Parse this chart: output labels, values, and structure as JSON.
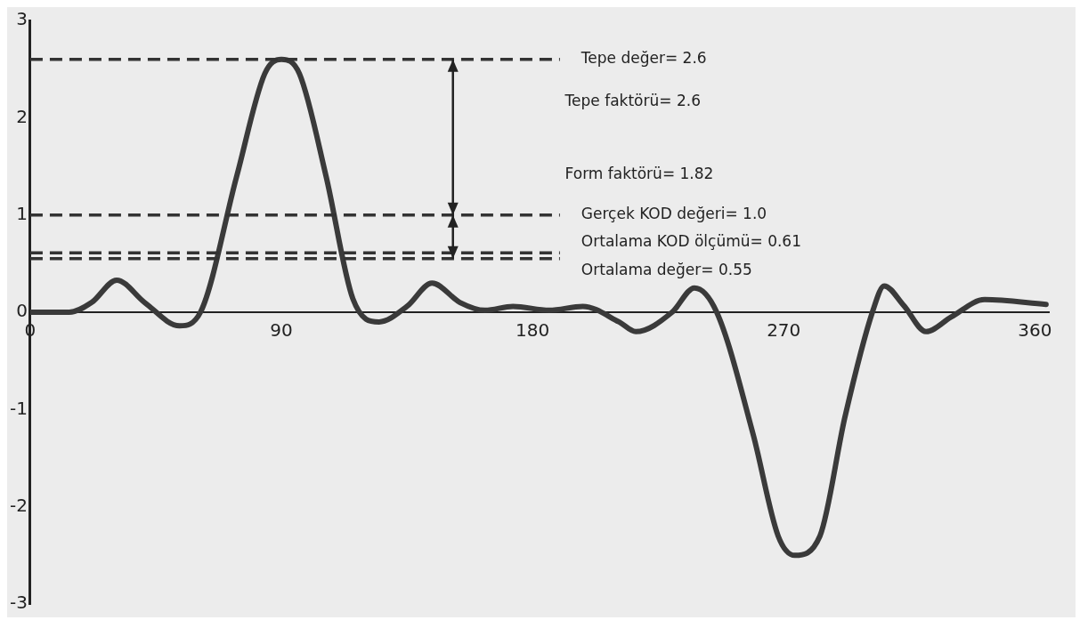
{
  "chart_data": {
    "type": "line",
    "x": [
      0,
      14,
      22,
      31,
      41,
      53.5,
      61,
      74,
      84,
      90,
      96.5,
      106,
      115.6,
      125,
      135,
      144,
      154,
      163,
      173,
      186,
      198,
      211,
      217,
      230,
      238,
      246,
      259,
      268,
      274,
      283,
      292,
      302,
      306,
      313,
      321,
      330,
      342,
      364
    ],
    "series": [
      {
        "color": "#3a3a3a",
        "values": [
          0,
          0,
          0.1,
          0.33,
          0.1,
          -0.14,
          0,
          1.4,
          2.45,
          2.6,
          2.45,
          1.4,
          0.14,
          -0.1,
          0.06,
          0.3,
          0.1,
          0.02,
          0.06,
          0.02,
          0.06,
          -0.1,
          -0.2,
          0,
          0.25,
          0,
          -1.25,
          -2.3,
          -2.5,
          -2.3,
          -1.07,
          0.02,
          0.27,
          0.07,
          -0.2,
          -0.05,
          0.13,
          0.08
        ]
      }
    ],
    "xlim": [
      0,
      365
    ],
    "xticks": [
      0,
      90,
      180,
      270,
      360
    ],
    "ylim": [
      -3,
      3
    ],
    "yticks": [
      -3,
      -2,
      -1,
      0,
      1,
      2,
      3
    ],
    "grid": false,
    "legend": false,
    "marker": "none",
    "line_style": "solid",
    "ref_lines": [
      {
        "axis": "y",
        "value": 2.6,
        "label": "Tepe değer= 2.6",
        "line_style": "dashed",
        "color": "#333333"
      },
      {
        "axis": "y",
        "value": 1.0,
        "label": "Gerçek KOD değeri= 1.0",
        "line_style": "dashed",
        "color": "#333333"
      },
      {
        "axis": "y",
        "value": 0.61,
        "label": "Ortalama KOD ölçümü= 0.61",
        "line_style": "dashed",
        "color": "#333333"
      },
      {
        "axis": "y",
        "value": 0.55,
        "label": "Ortalama değer= 0.55",
        "line_style": "dashed",
        "color": "#333333"
      }
    ],
    "annotations": [
      "Tepe faktörü= 2.6",
      "Form faktörü= 1.82"
    ]
  }
}
